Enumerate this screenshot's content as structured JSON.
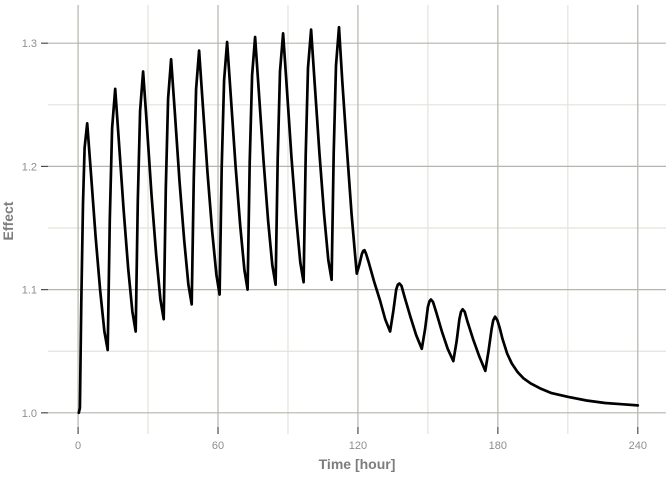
{
  "chart_data": {
    "type": "line",
    "title": "",
    "xlabel": "Time [hour]",
    "ylabel": "Effect",
    "xlim": [
      -12.9,
      252.1
    ],
    "ylim": [
      0.9885,
      1.331
    ],
    "grid": true,
    "legend": "none",
    "x_major_ticks": [
      0,
      60,
      120,
      180,
      240
    ],
    "x_minor_ticks": [
      30,
      90,
      150,
      210
    ],
    "x_tick_labels": [
      "0",
      "60",
      "120",
      "180",
      "240"
    ],
    "y_major_ticks": [
      1.0,
      1.1,
      1.2,
      1.3
    ],
    "y_minor_ticks": [
      1.05,
      1.15,
      1.25
    ],
    "y_tick_labels": [
      "1.0",
      "1.1",
      "1.2",
      "1.3"
    ],
    "colors": {
      "background": "#ffffff",
      "grid_major": "#b5b5ad",
      "grid_minor": "#e4e3db",
      "tick_mark": "#4d4d4d",
      "tick_label": "#8e8e8e",
      "axis_title": "#7d7d7d",
      "line": "#000000"
    },
    "series": [
      {
        "name": "Effect",
        "color": "#000000",
        "width": 2.7,
        "points": [
          [
            0.3,
            1.0
          ],
          [
            0.8,
            1.004
          ],
          [
            1.4,
            1.09
          ],
          [
            2.1,
            1.17
          ],
          [
            2.8,
            1.215
          ],
          [
            3.9,
            1.235
          ],
          [
            5.5,
            1.195
          ],
          [
            7.5,
            1.143
          ],
          [
            9.5,
            1.099
          ],
          [
            11.3,
            1.066
          ],
          [
            12.7,
            1.051
          ],
          [
            13.6,
            1.157
          ],
          [
            14.6,
            1.231
          ],
          [
            15.9,
            1.263
          ],
          [
            17.5,
            1.22
          ],
          [
            19.5,
            1.165
          ],
          [
            21.5,
            1.117
          ],
          [
            23.3,
            1.082
          ],
          [
            24.7,
            1.066
          ],
          [
            25.6,
            1.172
          ],
          [
            26.6,
            1.245
          ],
          [
            27.9,
            1.277
          ],
          [
            29.5,
            1.233
          ],
          [
            31.5,
            1.177
          ],
          [
            33.5,
            1.128
          ],
          [
            35.3,
            1.092
          ],
          [
            36.7,
            1.076
          ],
          [
            37.6,
            1.182
          ],
          [
            38.6,
            1.255
          ],
          [
            39.9,
            1.287
          ],
          [
            41.5,
            1.243
          ],
          [
            43.5,
            1.188
          ],
          [
            45.5,
            1.14
          ],
          [
            47.3,
            1.104
          ],
          [
            48.7,
            1.088
          ],
          [
            49.6,
            1.191
          ],
          [
            50.6,
            1.263
          ],
          [
            51.9,
            1.294
          ],
          [
            53.5,
            1.25
          ],
          [
            55.5,
            1.195
          ],
          [
            57.5,
            1.147
          ],
          [
            59.3,
            1.112
          ],
          [
            60.7,
            1.096
          ],
          [
            61.6,
            1.199
          ],
          [
            62.6,
            1.27
          ],
          [
            63.9,
            1.301
          ],
          [
            65.5,
            1.257
          ],
          [
            67.5,
            1.201
          ],
          [
            69.5,
            1.152
          ],
          [
            71.3,
            1.116
          ],
          [
            72.7,
            1.1
          ],
          [
            73.6,
            1.203
          ],
          [
            74.6,
            1.274
          ],
          [
            75.9,
            1.305
          ],
          [
            77.5,
            1.261
          ],
          [
            79.5,
            1.205
          ],
          [
            81.5,
            1.156
          ],
          [
            83.3,
            1.12
          ],
          [
            84.7,
            1.104
          ],
          [
            85.6,
            1.206
          ],
          [
            86.6,
            1.277
          ],
          [
            87.9,
            1.308
          ],
          [
            89.5,
            1.264
          ],
          [
            91.5,
            1.207
          ],
          [
            93.5,
            1.159
          ],
          [
            95.3,
            1.122
          ],
          [
            96.7,
            1.106
          ],
          [
            97.6,
            1.209
          ],
          [
            98.6,
            1.28
          ],
          [
            99.9,
            1.311
          ],
          [
            101.5,
            1.266
          ],
          [
            103.5,
            1.21
          ],
          [
            105.5,
            1.161
          ],
          [
            107.3,
            1.124
          ],
          [
            108.7,
            1.108
          ],
          [
            109.6,
            1.211
          ],
          [
            110.6,
            1.282
          ],
          [
            111.9,
            1.313
          ],
          [
            113.3,
            1.269
          ],
          [
            115.3,
            1.213
          ],
          [
            117.3,
            1.161
          ],
          [
            118.8,
            1.128
          ],
          [
            119.5,
            1.113
          ],
          [
            120.7,
            1.121
          ],
          [
            121.7,
            1.129
          ],
          [
            122.3,
            1.1315
          ],
          [
            122.8,
            1.132
          ],
          [
            123.5,
            1.129
          ],
          [
            124.5,
            1.123
          ],
          [
            127.0,
            1.106
          ],
          [
            129.5,
            1.091
          ],
          [
            131.7,
            1.076
          ],
          [
            133.8,
            1.066
          ],
          [
            135.2,
            1.083
          ],
          [
            136.4,
            1.1
          ],
          [
            137.1,
            1.104
          ],
          [
            137.8,
            1.105
          ],
          [
            138.7,
            1.103
          ],
          [
            140.0,
            1.094
          ],
          [
            142.5,
            1.078
          ],
          [
            145.0,
            1.063
          ],
          [
            147.4,
            1.052
          ],
          [
            148.8,
            1.068
          ],
          [
            150.0,
            1.086
          ],
          [
            150.7,
            1.0905
          ],
          [
            151.3,
            1.092
          ],
          [
            152.2,
            1.09
          ],
          [
            153.5,
            1.082
          ],
          [
            156.0,
            1.066
          ],
          [
            158.5,
            1.052
          ],
          [
            160.9,
            1.042
          ],
          [
            162.3,
            1.058
          ],
          [
            163.5,
            1.076
          ],
          [
            164.2,
            1.082
          ],
          [
            164.9,
            1.084
          ],
          [
            165.8,
            1.082
          ],
          [
            167.0,
            1.074
          ],
          [
            169.5,
            1.059
          ],
          [
            172.0,
            1.046
          ],
          [
            174.6,
            1.034
          ],
          [
            176.0,
            1.05
          ],
          [
            177.3,
            1.068
          ],
          [
            178.0,
            1.075
          ],
          [
            178.8,
            1.078
          ],
          [
            179.8,
            1.075
          ],
          [
            180.8,
            1.069
          ],
          [
            182.0,
            1.06
          ],
          [
            184.0,
            1.048
          ],
          [
            186.0,
            1.04
          ],
          [
            188.5,
            1.033
          ],
          [
            191.0,
            1.028
          ],
          [
            194.0,
            1.024
          ],
          [
            198.0,
            1.02
          ],
          [
            203.0,
            1.016
          ],
          [
            210.0,
            1.013
          ],
          [
            218.0,
            1.01
          ],
          [
            226.0,
            1.008
          ],
          [
            233.0,
            1.007
          ],
          [
            240.0,
            1.006
          ]
        ]
      }
    ]
  }
}
